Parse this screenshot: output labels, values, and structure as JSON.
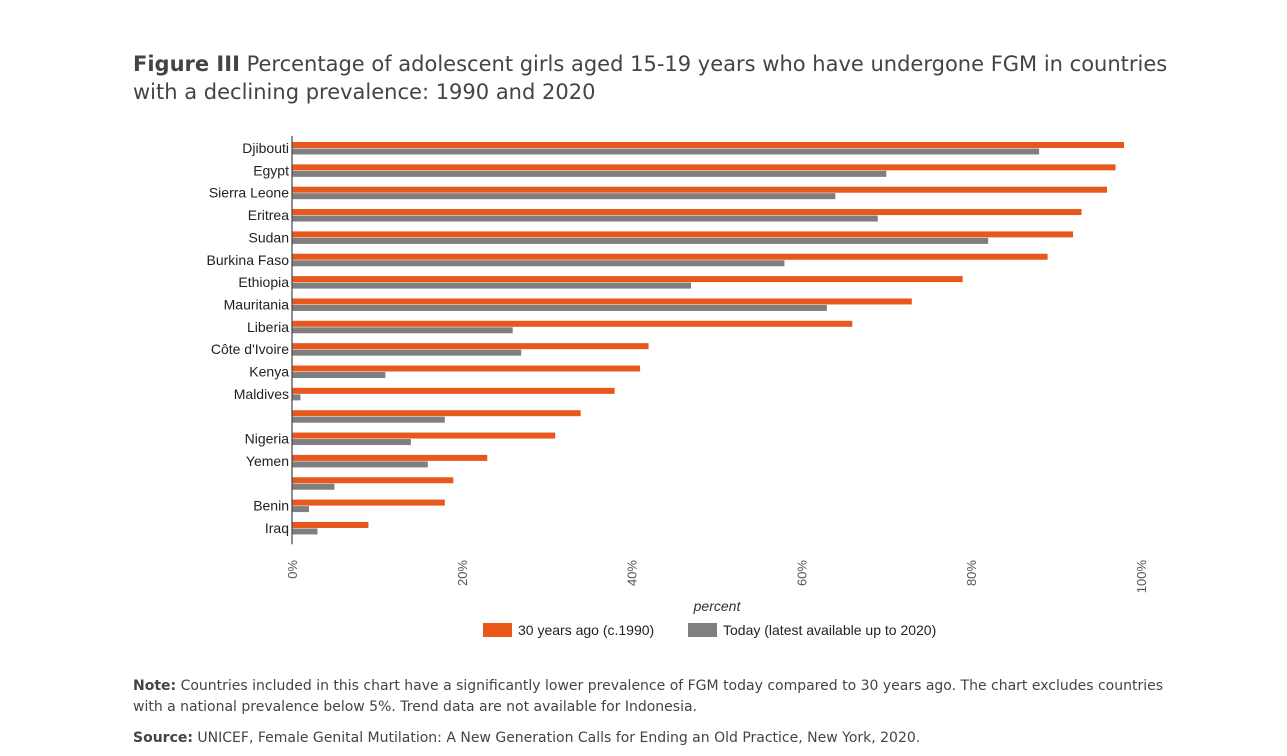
{
  "title": {
    "prefix": "Figure III",
    "text": "Percentage of adolescent girls aged 15-19 years who have undergone FGM in countries with a declining prevalence: 1990 and 2020"
  },
  "note": {
    "label": "Note:",
    "text": "Countries included in this chart have a significantly lower prevalence of FGM today compared to 30 years ago. The chart excludes countries with a national prevalence below 5%. Trend data are not available for Indonesia."
  },
  "source": {
    "label": "Source:",
    "text": "UNICEF, Female Genital Mutilation: A New Generation Calls for Ending an Old Practice, New York, 2020."
  },
  "chart_data": {
    "type": "bar",
    "orientation": "horizontal",
    "categories": [
      "Djibouti",
      "Egypt",
      "Sierra Leone",
      "Eritrea",
      "Sudan",
      "Burkina Faso",
      "Ethiopia",
      "Mauritania",
      "Liberia",
      "Côte d'Ivoire",
      "Kenya",
      "Maldives",
      "",
      "Nigeria",
      "Yemen",
      "",
      "Benin",
      "Iraq"
    ],
    "series": [
      {
        "name": "30 years ago (c.1990)",
        "color": "#e8581c",
        "values": [
          98,
          97,
          96,
          93,
          92,
          89,
          79,
          73,
          66,
          42,
          41,
          38,
          34,
          31,
          23,
          19,
          18,
          9
        ]
      },
      {
        "name": "Today (latest available up to 2020)",
        "color": "#7f7f7f",
        "values": [
          88,
          70,
          64,
          69,
          82,
          58,
          47,
          63,
          26,
          27,
          11,
          1,
          18,
          14,
          16,
          5,
          2,
          3
        ]
      }
    ],
    "xlabel": "percent",
    "xlim": [
      0,
      100
    ],
    "xticks": [
      "0%",
      "20%",
      "40%",
      "60%",
      "80%",
      "100%"
    ],
    "legend_position": "bottom",
    "grid": false
  }
}
